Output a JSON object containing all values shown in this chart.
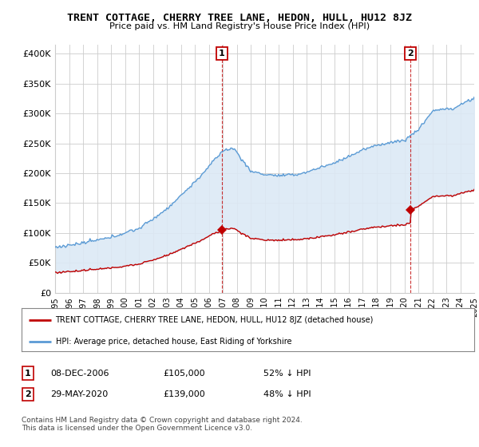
{
  "title": "TRENT COTTAGE, CHERRY TREE LANE, HEDON, HULL, HU12 8JZ",
  "subtitle": "Price paid vs. HM Land Registry's House Price Index (HPI)",
  "ylabel_ticks": [
    "£0",
    "£50K",
    "£100K",
    "£150K",
    "£200K",
    "£250K",
    "£300K",
    "£350K",
    "£400K"
  ],
  "ytick_vals": [
    0,
    50000,
    100000,
    150000,
    200000,
    250000,
    300000,
    350000,
    400000
  ],
  "ylim": [
    0,
    415000
  ],
  "xlim_years": [
    1995,
    2025
  ],
  "xtick_years": [
    1995,
    1996,
    1997,
    1998,
    1999,
    2000,
    2001,
    2002,
    2003,
    2004,
    2005,
    2006,
    2007,
    2008,
    2009,
    2010,
    2011,
    2012,
    2013,
    2014,
    2015,
    2016,
    2017,
    2018,
    2019,
    2020,
    2021,
    2022,
    2023,
    2024,
    2025
  ],
  "hpi_color": "#5b9bd5",
  "hpi_fill_color": "#dce9f5",
  "property_color": "#c00000",
  "marker1_year": 2006.92,
  "marker1_price": 105000,
  "marker2_year": 2020.42,
  "marker2_price": 139000,
  "legend_property": "TRENT COTTAGE, CHERRY TREE LANE, HEDON, HULL, HU12 8JZ (detached house)",
  "legend_hpi": "HPI: Average price, detached house, East Riding of Yorkshire",
  "annotation1_date": "08-DEC-2006",
  "annotation1_price": "£105,000",
  "annotation1_pct": "52% ↓ HPI",
  "annotation2_date": "29-MAY-2020",
  "annotation2_price": "£139,000",
  "annotation2_pct": "48% ↓ HPI",
  "footnote": "Contains HM Land Registry data © Crown copyright and database right 2024.\nThis data is licensed under the Open Government Licence v3.0.",
  "bg_color": "#ffffff",
  "grid_color": "#cccccc"
}
